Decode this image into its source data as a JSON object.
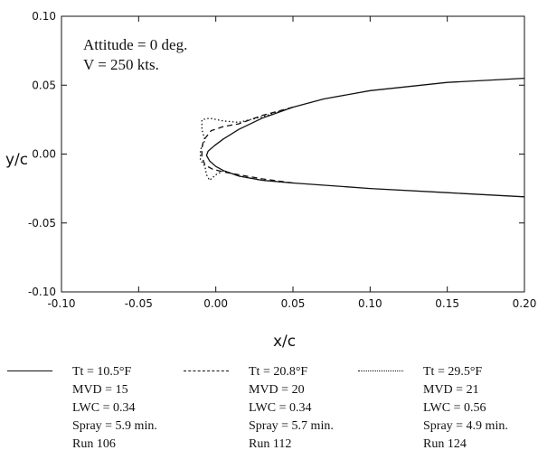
{
  "chart_data": {
    "type": "line",
    "xlabel": "x/c",
    "ylabel": "y/c",
    "xlim": [
      -0.1,
      0.2
    ],
    "ylim": [
      -0.1,
      0.1
    ],
    "x_ticks": [
      "-0.10",
      "-0.05",
      "0.00",
      "0.05",
      "0.10",
      "0.15",
      "0.20"
    ],
    "y_ticks": [
      "-0.10",
      "-0.05",
      "0.00",
      "0.05",
      "0.10"
    ],
    "annotations": [
      "Attitude = 0 deg.",
      "V = 250 kts."
    ],
    "grid": false,
    "series": [
      {
        "style": "solid",
        "legend": [
          "Tt = 10.5°F",
          "MVD = 15",
          "LWC = 0.34",
          "Spray = 5.9 min.",
          "Run 106"
        ],
        "points": [
          [
            0.2,
            0.055
          ],
          [
            0.15,
            0.052
          ],
          [
            0.1,
            0.046
          ],
          [
            0.07,
            0.04
          ],
          [
            0.05,
            0.034
          ],
          [
            0.03,
            0.026
          ],
          [
            0.015,
            0.018
          ],
          [
            0.005,
            0.011
          ],
          [
            -0.001,
            0.006
          ],
          [
            -0.005,
            0.002
          ],
          [
            -0.006,
            -0.001
          ],
          [
            -0.004,
            -0.005
          ],
          [
            0.0,
            -0.009
          ],
          [
            0.005,
            -0.012
          ],
          [
            0.015,
            -0.016
          ],
          [
            0.03,
            -0.019
          ],
          [
            0.05,
            -0.021
          ],
          [
            0.1,
            -0.025
          ],
          [
            0.15,
            -0.028
          ],
          [
            0.2,
            -0.031
          ]
        ]
      },
      {
        "style": "dashed",
        "legend": [
          "Tt = 20.8°F",
          "MVD = 20",
          "LWC = 0.34",
          "Spray = 5.7 min.",
          "Run 112"
        ],
        "points": [
          [
            0.05,
            0.034
          ],
          [
            0.03,
            0.028
          ],
          [
            0.015,
            0.022
          ],
          [
            0.005,
            0.02
          ],
          [
            -0.003,
            0.017
          ],
          [
            -0.008,
            0.01
          ],
          [
            -0.009,
            0.004
          ],
          [
            -0.009,
            -0.002
          ],
          [
            -0.007,
            -0.008
          ],
          [
            -0.002,
            -0.011
          ],
          [
            0.005,
            -0.013
          ],
          [
            0.015,
            -0.015
          ],
          [
            0.03,
            -0.018
          ],
          [
            0.05,
            -0.021
          ]
        ]
      },
      {
        "style": "dotted",
        "legend": [
          "Tt = 29.5°F",
          "MVD = 21",
          "LWC = 0.56",
          "Spray = 4.9 min.",
          "Run 124"
        ],
        "points": [
          [
            0.05,
            0.034
          ],
          [
            0.03,
            0.027
          ],
          [
            0.015,
            0.023
          ],
          [
            0.005,
            0.024
          ],
          [
            -0.004,
            0.026
          ],
          [
            -0.009,
            0.025
          ],
          [
            -0.009,
            0.018
          ],
          [
            -0.007,
            0.01
          ],
          [
            -0.01,
            0.003
          ],
          [
            -0.01,
            -0.004
          ],
          [
            -0.007,
            -0.009
          ],
          [
            -0.006,
            -0.015
          ],
          [
            -0.004,
            -0.019
          ],
          [
            0.0,
            -0.015
          ],
          [
            0.005,
            -0.012
          ],
          [
            0.015,
            -0.016
          ],
          [
            0.03,
            -0.019
          ],
          [
            0.05,
            -0.021
          ]
        ]
      }
    ]
  }
}
